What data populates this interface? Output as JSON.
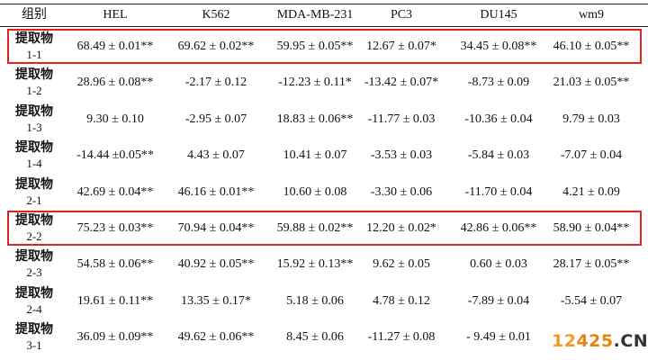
{
  "table": {
    "group_header": "组别",
    "columns": [
      "HEL",
      "K562",
      "MDA-MB-231",
      "PC3",
      "DU145",
      "wm9"
    ],
    "rows": [
      {
        "label": "提取物",
        "sub": "1-1",
        "highlight": true,
        "values": [
          "68.49 ± 0.01**",
          "69.62 ± 0.02**",
          "59.95 ± 0.05**",
          "12.67 ± 0.07*",
          "34.45 ± 0.08**",
          "46.10 ± 0.05**"
        ]
      },
      {
        "label": "提取物",
        "sub": "1-2",
        "highlight": false,
        "values": [
          "28.96 ± 0.08**",
          "-2.17 ± 0.12",
          "-12.23 ± 0.11*",
          "-13.42 ± 0.07*",
          "-8.73 ± 0.09",
          "21.03 ± 0.05**"
        ]
      },
      {
        "label": "提取物",
        "sub": "1-3",
        "highlight": false,
        "values": [
          "9.30 ± 0.10",
          "-2.95 ± 0.07",
          "18.83 ± 0.06**",
          "-11.77 ± 0.03",
          "-10.36 ± 0.04",
          "9.79 ± 0.03"
        ]
      },
      {
        "label": "提取物",
        "sub": "1-4",
        "highlight": false,
        "values": [
          "-14.44 ±0.05**",
          "4.43 ± 0.07",
          "10.41 ± 0.07",
          "-3.53 ± 0.03",
          "-5.84 ± 0.03",
          "-7.07 ± 0.04"
        ]
      },
      {
        "label": "提取物",
        "sub": "2-1",
        "highlight": false,
        "values": [
          "42.69 ± 0.04**",
          "46.16 ± 0.01**",
          "10.60 ± 0.08",
          "-3.30 ± 0.06",
          "-11.70 ± 0.04",
          "4.21 ± 0.09"
        ]
      },
      {
        "label": "提取物",
        "sub": "2-2",
        "highlight": true,
        "values": [
          "75.23 ± 0.03**",
          "70.94 ± 0.04**",
          "59.88 ± 0.02**",
          "12.20 ± 0.02*",
          "42.86 ± 0.06**",
          "58.90 ± 0.04**"
        ]
      },
      {
        "label": "提取物",
        "sub": "2-3",
        "highlight": false,
        "values": [
          "54.58 ± 0.06**",
          "40.92 ± 0.05**",
          "15.92 ± 0.13**",
          "9.62 ± 0.05",
          "0.60 ± 0.03",
          "28.17 ± 0.05**"
        ]
      },
      {
        "label": "提取物",
        "sub": "2-4",
        "highlight": false,
        "values": [
          "19.61 ± 0.11**",
          "13.35 ± 0.17*",
          "5.18 ± 0.06",
          "4.78 ± 0.12",
          "-7.89 ± 0.04",
          "-5.54 ± 0.07"
        ]
      },
      {
        "label": "提取物",
        "sub": "3-1",
        "highlight": false,
        "values": [
          "36.09 ± 0.09**",
          "49.62 ± 0.06**",
          "8.45 ± 0.06",
          "-11.27 ± 0.08",
          "- 9.49 ± 0.01",
          ""
        ]
      }
    ]
  },
  "watermark": {
    "part1": "12",
    "part2": "425",
    "part3": ".CN"
  }
}
